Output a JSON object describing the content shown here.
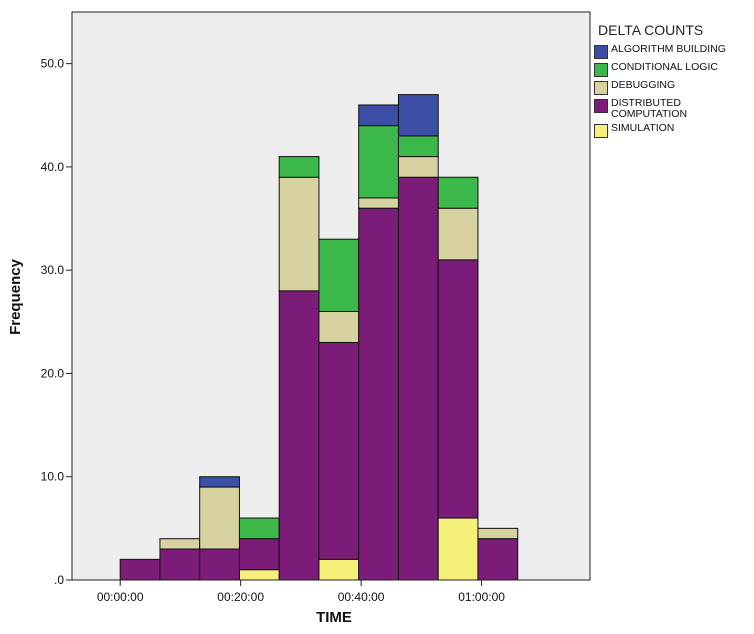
{
  "chart_data": {
    "type": "bar",
    "stacked": true,
    "xlabel": "TIME",
    "ylabel": "Frequency",
    "ylim": [
      0,
      55
    ],
    "yticks": [
      0,
      10,
      20,
      30,
      40,
      50
    ],
    "ytick_labels": [
      ".0",
      "10.0",
      "20.0",
      "30.0",
      "40.0",
      "50.0"
    ],
    "xticks": [
      {
        "value": 0,
        "label": "00:00:00"
      },
      {
        "value": 20,
        "label": "00:20:00"
      },
      {
        "value": 40,
        "label": "00:40:00"
      },
      {
        "value": 60,
        "label": "01:00:00"
      }
    ],
    "xlim": [
      -8,
      78
    ],
    "bin_width": 6.6,
    "bin_starts": [
      0,
      6.6,
      13.2,
      19.8,
      26.4,
      33.0,
      39.6,
      46.2,
      52.8,
      59.4
    ],
    "legend_title": "DELTA COUNTS",
    "legend_position": "top-right",
    "background": "#eeeeee",
    "series": [
      {
        "name": "SIMULATION",
        "color": "#f4f07a",
        "values": [
          0,
          0,
          0,
          1,
          0,
          2,
          0,
          0,
          6,
          0
        ]
      },
      {
        "name": "DISTRIBUTED COMPUTATION",
        "color": "#7b1c78",
        "values": [
          2,
          3,
          3,
          3,
          28,
          21,
          36,
          39,
          25,
          4
        ]
      },
      {
        "name": "DEBUGGING",
        "color": "#d8d1a0",
        "values": [
          0,
          1,
          6,
          0,
          11,
          3,
          1,
          2,
          5,
          1
        ]
      },
      {
        "name": "CONDITIONAL LOGIC",
        "color": "#3cb84a",
        "values": [
          0,
          0,
          0,
          2,
          2,
          7,
          7,
          2,
          3,
          0
        ]
      },
      {
        "name": "ALGORITHM BUILDING",
        "color": "#3d4ea6",
        "values": [
          0,
          0,
          1,
          0,
          0,
          0,
          2,
          4,
          0,
          0
        ]
      }
    ],
    "legend_order": [
      "ALGORITHM BUILDING",
      "CONDITIONAL LOGIC",
      "DEBUGGING",
      "DISTRIBUTED COMPUTATION",
      "SIMULATION"
    ]
  }
}
